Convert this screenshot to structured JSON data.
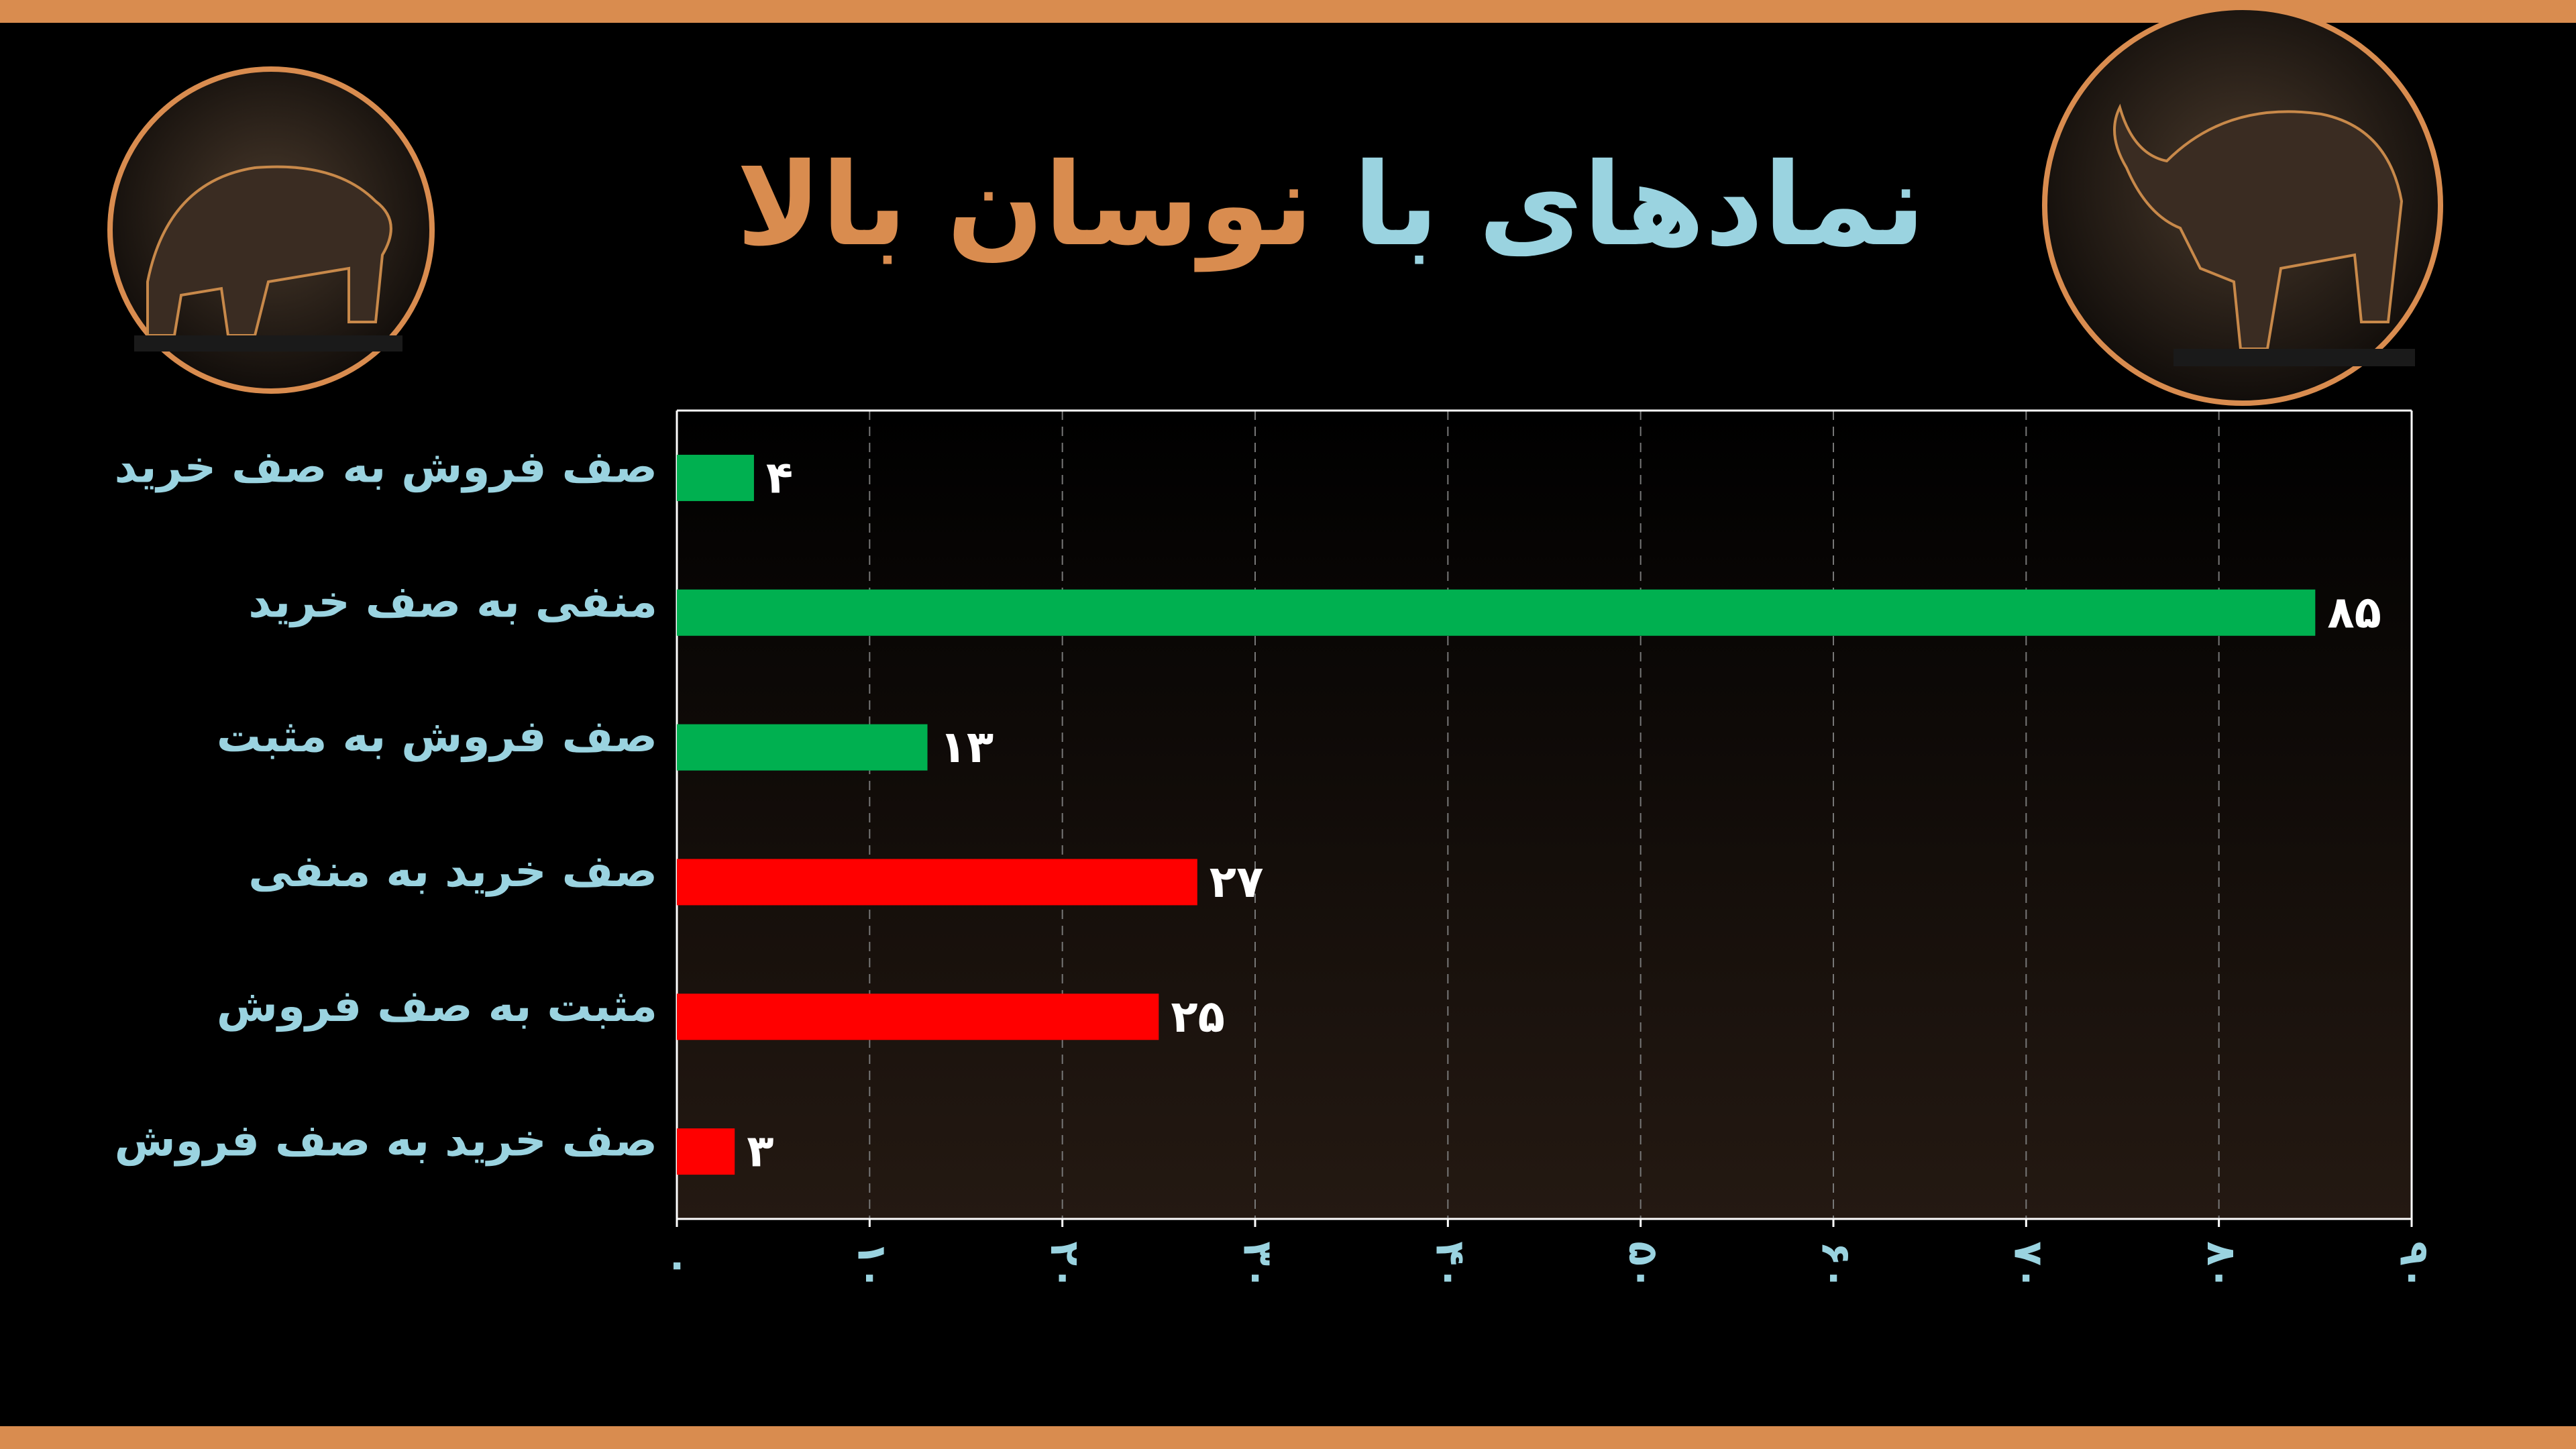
{
  "chart_data": {
    "type": "bar",
    "orientation": "horizontal",
    "title": "نمادهای با",
    "title_highlight": "نوسان بالا",
    "categories": [
      "صف فروش به صف خرید",
      "منفی به صف خرید",
      "صف فروش به مثبت",
      "صف خرید به منفی",
      "مثبت به صف فروش",
      "صف خرید به صف فروش"
    ],
    "values": [
      4,
      85,
      13,
      27,
      25,
      3
    ],
    "value_labels": [
      "۴",
      "۸۵",
      "۱۳",
      "۲۷",
      "۲۵",
      "۳"
    ],
    "colors": [
      "#00b050",
      "#00b050",
      "#00b050",
      "#ff0000",
      "#ff0000",
      "#ff0000"
    ],
    "xlim": [
      0,
      90
    ],
    "xticks": [
      {
        "value": 0,
        "label": "۰"
      },
      {
        "value": 10,
        "label": "۱۰"
      },
      {
        "value": 20,
        "label": "۲۰"
      },
      {
        "value": 30,
        "label": "۳۰"
      },
      {
        "value": 40,
        "label": "۴۰"
      },
      {
        "value": 50,
        "label": "۵۰"
      },
      {
        "value": 60,
        "label": "۶۰"
      },
      {
        "value": 70,
        "label": "۷۰"
      },
      {
        "value": 80,
        "label": "۸۰"
      },
      {
        "value": 90,
        "label": "۹۰"
      }
    ],
    "grid": true
  }
}
